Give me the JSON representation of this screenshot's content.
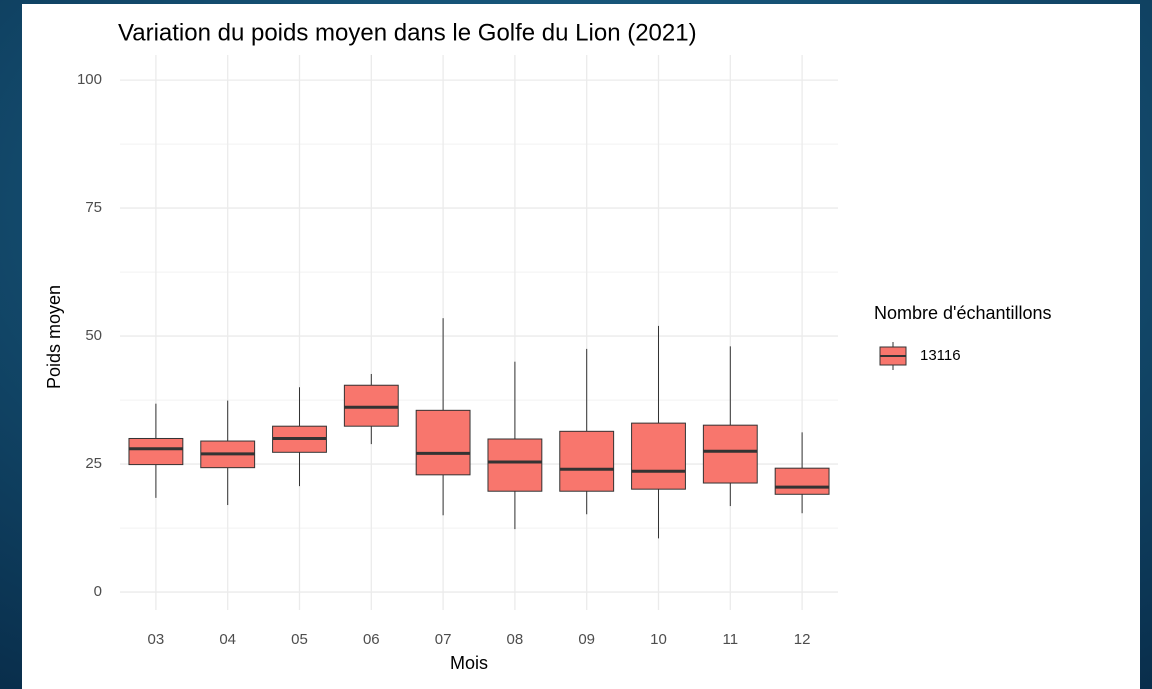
{
  "chart_data": {
    "type": "boxplot",
    "title": "Variation du poids moyen dans le Golfe du Lion (2021)",
    "x_label": "Mois",
    "y_label": "Poids moyen",
    "categories": [
      "03",
      "04",
      "05",
      "06",
      "07",
      "08",
      "09",
      "10",
      "11",
      "12"
    ],
    "legend_title": "Nombre d'échantillons",
    "legend_position": "right",
    "series": [
      {
        "name": "13116",
        "color": "#f8766d",
        "whisker_low": [
          18.4,
          17,
          20.7,
          28.9,
          15,
          12.3,
          15.2,
          10.5,
          16.8,
          15.4
        ],
        "q1": [
          24.9,
          24.3,
          27.3,
          32.4,
          22.9,
          19.7,
          19.7,
          20.1,
          21.3,
          19.1
        ],
        "median": [
          28,
          27,
          30,
          36.1,
          27.1,
          25.4,
          24,
          23.6,
          27.5,
          20.5
        ],
        "q3": [
          30,
          29.5,
          32.4,
          40.4,
          35.5,
          29.9,
          31.4,
          33,
          32.6,
          24.2
        ],
        "whisker_high": [
          36.8,
          37.4,
          40,
          42.6,
          53.5,
          45,
          47.5,
          52,
          48,
          31.2
        ]
      }
    ],
    "ylim": [
      -3.5,
      104.9
    ],
    "yticks": [
      0,
      25,
      50,
      75,
      100
    ],
    "y_minor_ticks": [
      12.5,
      37.5,
      62.5,
      87.5
    ],
    "grid": true
  }
}
